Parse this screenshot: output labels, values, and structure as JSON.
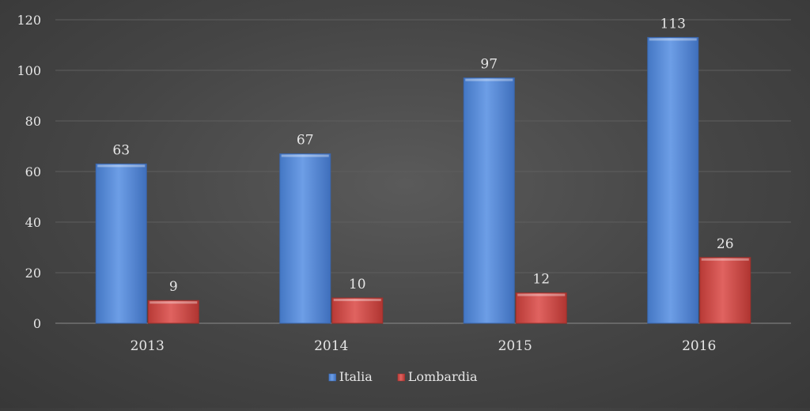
{
  "chart_data": {
    "type": "bar",
    "categories": [
      "2013",
      "2014",
      "2015",
      "2016"
    ],
    "series": [
      {
        "name": "Italia",
        "values": [
          63,
          67,
          97,
          113
        ],
        "color": "#5b8fd8"
      },
      {
        "name": "Lombardia",
        "values": [
          9,
          10,
          12,
          26
        ],
        "color": "#d9534f"
      }
    ],
    "ylim": [
      0,
      120
    ],
    "yticks": [
      0,
      20,
      40,
      60,
      80,
      100,
      120
    ],
    "grid": true,
    "legend_position": "bottom-center",
    "title": "",
    "xlabel": "",
    "ylabel": ""
  }
}
